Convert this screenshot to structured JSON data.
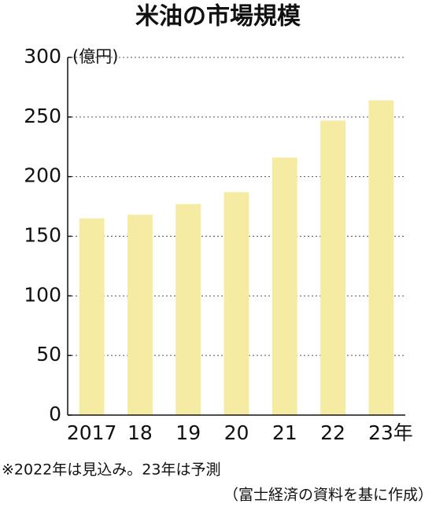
{
  "chart_data": {
    "type": "bar",
    "title": "米油の市場規模",
    "unit_label": "(億円)",
    "categories": [
      "2017",
      "18",
      "19",
      "20",
      "21",
      "22",
      "23年"
    ],
    "values": [
      165,
      168,
      177,
      187,
      216,
      247,
      264
    ],
    "color": "#f6eba2",
    "ylim": [
      0,
      300
    ],
    "yticks": [
      0,
      50,
      100,
      150,
      200,
      250,
      300
    ],
    "grid": true,
    "notes": [
      "※2022年は見込み。23年は予測",
      "（富士経済の資料を基に作成）"
    ]
  }
}
